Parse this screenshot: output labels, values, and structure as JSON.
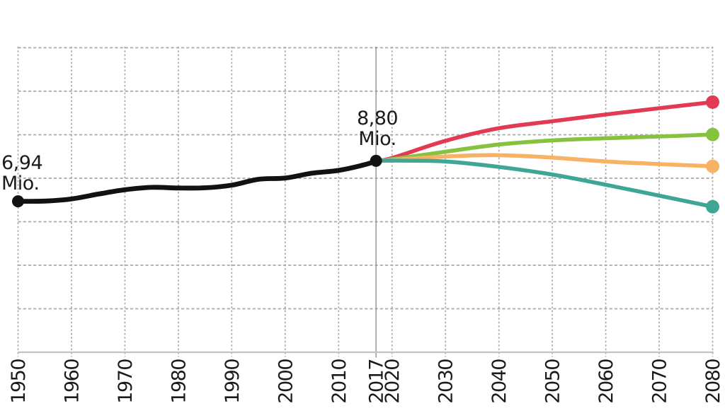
{
  "colors": {
    "background": "#ffffff",
    "grid": "#a8a8a8",
    "axis": "#c3c3c3",
    "divider_line": "#8f8f8f",
    "text": "#1b1b1b"
  },
  "chart_data": {
    "type": "line",
    "title": "",
    "xlabel": "",
    "ylabel": "",
    "unit": "Mio.",
    "ylim": [
      0,
      14
    ],
    "grid_step_mio": 2,
    "x_range": [
      1950,
      2080
    ],
    "grid": "dashed",
    "legend_position": "none",
    "divider_year": 2017,
    "annotations": [
      {
        "value": "6,94",
        "unit": "Mio.",
        "year": 1950,
        "population_mio": 6.94
      },
      {
        "value": "8,80",
        "unit": "Mio.",
        "year": 2017,
        "population_mio": 8.8
      }
    ],
    "x_ticks": [
      {
        "label": "1950",
        "year": 1950,
        "grid": "dashed"
      },
      {
        "label": "1960",
        "year": 1960,
        "grid": "dashed"
      },
      {
        "label": "1970",
        "year": 1970,
        "grid": "dashed"
      },
      {
        "label": "1980",
        "year": 1980,
        "grid": "dashed"
      },
      {
        "label": "1990",
        "year": 1990,
        "grid": "dashed"
      },
      {
        "label": "2000",
        "year": 2000,
        "grid": "dashed"
      },
      {
        "label": "2010",
        "year": 2010,
        "grid": "dashed"
      },
      {
        "label": "2017",
        "year": 2017,
        "grid": "solid"
      },
      {
        "label": "2020",
        "year": 2020,
        "grid": "dashed"
      },
      {
        "label": "2030",
        "year": 2030,
        "grid": "dashed"
      },
      {
        "label": "2040",
        "year": 2040,
        "grid": "dashed"
      },
      {
        "label": "2050",
        "year": 2050,
        "grid": "dashed"
      },
      {
        "label": "2060",
        "year": 2060,
        "grid": "dashed"
      },
      {
        "label": "2070",
        "year": 2070,
        "grid": "dashed"
      },
      {
        "label": "2080",
        "year": 2080,
        "grid": "dashed"
      }
    ],
    "series": [
      {
        "name": "historical-population",
        "color": "#121212",
        "points": [
          [
            1950,
            6.94
          ],
          [
            1955,
            6.95
          ],
          [
            1960,
            7.05
          ],
          [
            1965,
            7.27
          ],
          [
            1970,
            7.47
          ],
          [
            1975,
            7.58
          ],
          [
            1980,
            7.55
          ],
          [
            1985,
            7.56
          ],
          [
            1990,
            7.68
          ],
          [
            1995,
            7.95
          ],
          [
            2000,
            8.01
          ],
          [
            2005,
            8.23
          ],
          [
            2010,
            8.36
          ],
          [
            2015,
            8.63
          ],
          [
            2017,
            8.8
          ]
        ]
      },
      {
        "name": "projection-red-high",
        "color": "#e23a52",
        "points": [
          [
            2017,
            8.8
          ],
          [
            2020,
            8.93
          ],
          [
            2030,
            9.72
          ],
          [
            2040,
            10.3
          ],
          [
            2050,
            10.62
          ],
          [
            2060,
            10.93
          ],
          [
            2070,
            11.22
          ],
          [
            2080,
            11.5
          ]
        ]
      },
      {
        "name": "projection-green",
        "color": "#87c23e",
        "points": [
          [
            2017,
            8.8
          ],
          [
            2020,
            8.87
          ],
          [
            2030,
            9.22
          ],
          [
            2040,
            9.55
          ],
          [
            2050,
            9.74
          ],
          [
            2060,
            9.84
          ],
          [
            2070,
            9.92
          ],
          [
            2080,
            10.01
          ]
        ]
      },
      {
        "name": "projection-orange",
        "color": "#f8b264",
        "points": [
          [
            2017,
            8.8
          ],
          [
            2020,
            8.84
          ],
          [
            2030,
            9.0
          ],
          [
            2040,
            9.06
          ],
          [
            2050,
            8.95
          ],
          [
            2060,
            8.77
          ],
          [
            2070,
            8.65
          ],
          [
            2080,
            8.55
          ]
        ]
      },
      {
        "name": "projection-teal-low",
        "color": "#3fa695",
        "points": [
          [
            2017,
            8.8
          ],
          [
            2020,
            8.81
          ],
          [
            2030,
            8.77
          ],
          [
            2040,
            8.52
          ],
          [
            2050,
            8.17
          ],
          [
            2060,
            7.7
          ],
          [
            2070,
            7.2
          ],
          [
            2080,
            6.69
          ]
        ]
      }
    ]
  }
}
